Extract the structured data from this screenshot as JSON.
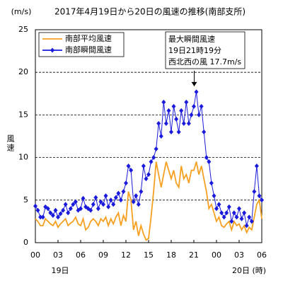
{
  "chart_data": {
    "type": "line",
    "title": "2017年4月19日から20日の風速の推移(南部支所)",
    "unit_label": "(m/s)",
    "ylabel": "風速",
    "day_labels": [
      "19日",
      "20日 (時)"
    ],
    "annotation": [
      "最大瞬間風速",
      "19日21時19分",
      "西北西の風 17.7m/s"
    ],
    "legend": "top-left",
    "grid": true,
    "xlim": [
      0,
      30
    ],
    "xticks": [
      {
        "value": 0,
        "label": "00"
      },
      {
        "value": 3,
        "label": "03"
      },
      {
        "value": 6,
        "label": "06"
      },
      {
        "value": 9,
        "label": "09"
      },
      12,
      15,
      18,
      21,
      {
        "value": 24,
        "label": "00"
      },
      {
        "value": 27,
        "label": "03"
      },
      {
        "value": 30,
        "label": "06"
      }
    ],
    "ylim": [
      0,
      25
    ],
    "yticks": [
      0,
      5,
      10,
      15,
      20,
      25
    ],
    "x": [
      0,
      0.33,
      0.67,
      1,
      1.33,
      1.67,
      2,
      2.33,
      2.67,
      3,
      3.33,
      3.67,
      4,
      4.33,
      4.67,
      5,
      5.33,
      5.67,
      6,
      6.33,
      6.67,
      7,
      7.33,
      7.67,
      8,
      8.33,
      8.67,
      9,
      9.33,
      9.67,
      10,
      10.33,
      10.67,
      11,
      11.33,
      11.67,
      12,
      12.33,
      12.67,
      13,
      13.33,
      13.67,
      14,
      14.33,
      14.67,
      15,
      15.33,
      15.67,
      16,
      16.33,
      16.67,
      17,
      17.33,
      17.67,
      18,
      18.33,
      18.67,
      19,
      19.33,
      19.67,
      20,
      20.33,
      20.67,
      21,
      21.33,
      21.67,
      22,
      22.33,
      22.67,
      23,
      23.33,
      23.67,
      24,
      24.33,
      24.67,
      25,
      25.33,
      25.67,
      26,
      26.33,
      26.67,
      27,
      27.33,
      27.67,
      28,
      28.33,
      28.67,
      29,
      29.33,
      29.67,
      30
    ],
    "series": [
      {
        "name": "南部平均風速",
        "color": "#f5a020",
        "marker": false,
        "values": [
          2.8,
          2.5,
          2.0,
          2.0,
          2.8,
          2.5,
          2.2,
          2.0,
          2.5,
          1.8,
          2.2,
          2.5,
          2.8,
          2.0,
          2.3,
          2.5,
          3.0,
          2.2,
          2.0,
          2.8,
          1.5,
          1.8,
          2.5,
          2.8,
          2.5,
          2.0,
          2.8,
          2.5,
          3.0,
          2.0,
          2.8,
          2.2,
          3.0,
          3.5,
          2.0,
          3.2,
          2.5,
          6.0,
          5.0,
          1.5,
          2.5,
          0.8,
          2.0,
          1.0,
          0.3,
          0.5,
          3.0,
          6.0,
          9.5,
          8.0,
          6.5,
          8.0,
          9.5,
          8.5,
          7.5,
          8.5,
          7.0,
          6.5,
          9.0,
          7.5,
          8.0,
          7.0,
          8.5,
          8.5,
          9.5,
          8.0,
          9.0,
          7.5,
          6.0,
          4.0,
          4.5,
          3.5,
          2.5,
          3.0,
          2.0,
          1.8,
          2.2,
          2.5,
          1.5,
          2.5,
          2.0,
          2.2,
          1.5,
          2.0,
          1.2,
          1.8,
          1.5,
          3.0,
          4.5,
          5.0,
          2.8
        ]
      },
      {
        "name": "南部瞬間風速",
        "color": "#1a1adc",
        "marker": true,
        "values": [
          4.3,
          3.8,
          3.0,
          3.0,
          4.2,
          4.0,
          3.5,
          3.2,
          3.8,
          3.0,
          3.4,
          3.8,
          4.5,
          3.5,
          4.0,
          4.5,
          4.8,
          3.8,
          4.0,
          5.2,
          4.2,
          4.0,
          3.8,
          4.5,
          5.3,
          4.0,
          4.8,
          4.5,
          5.5,
          4.2,
          5.0,
          4.5,
          5.3,
          5.8,
          5.0,
          6.0,
          7.0,
          9.0,
          8.5,
          4.8,
          5.5,
          4.5,
          6.0,
          9.0,
          7.5,
          8.0,
          9.5,
          10.0,
          11.0,
          14.0,
          12.5,
          16.5,
          14.0,
          15.5,
          13.0,
          16.0,
          14.5,
          13.0,
          15.5,
          14.0,
          16.5,
          14.0,
          15.0,
          16.0,
          17.7,
          15.0,
          16.0,
          13.0,
          10.0,
          9.5,
          7.0,
          5.5,
          4.0,
          4.5,
          3.5,
          3.0,
          3.5,
          4.2,
          2.5,
          3.5,
          3.0,
          4.0,
          2.8,
          3.5,
          2.0,
          3.0,
          2.5,
          6.0,
          9.0,
          5.5,
          5.0
        ]
      }
    ]
  }
}
